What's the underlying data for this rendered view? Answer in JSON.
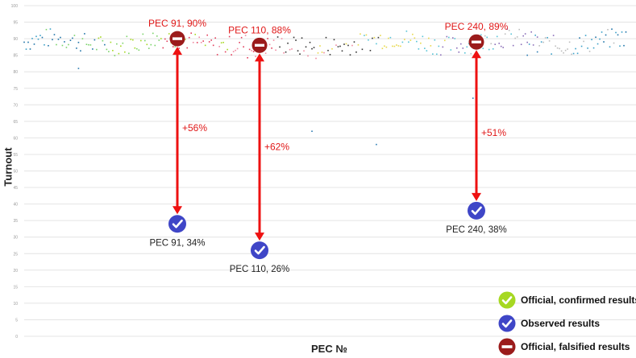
{
  "chart_data": {
    "type": "scatter",
    "xlabel": "PEC №",
    "ylabel": "Turnout",
    "ylim": [
      0,
      100
    ],
    "yticks": [
      0,
      5,
      10,
      15,
      20,
      25,
      30,
      35,
      40,
      45,
      50,
      55,
      60,
      65,
      70,
      75,
      80,
      85,
      90,
      95,
      100
    ],
    "grid": true,
    "legend_position": "bottom-right",
    "legend": [
      {
        "label": "Official, confirmed results",
        "icon": "check-icon",
        "color": "#a6d822"
      },
      {
        "label": "Observed results",
        "icon": "check-icon",
        "color": "#3f46c7"
      },
      {
        "label": "Official, falsified results",
        "icon": "no-entry-icon",
        "color": "#9b1b1b"
      }
    ],
    "highlights": [
      {
        "pec": 91,
        "official": 90,
        "observed": 34,
        "official_label": "PEC 91, 90%",
        "observed_label": "PEC 91, 34%",
        "delta_label": "+56%"
      },
      {
        "pec": 110,
        "official": 88,
        "observed": 26,
        "official_label": "PEC 110, 88%",
        "observed_label": "PEC 110, 26%",
        "delta_label": "+62%"
      },
      {
        "pec": 240,
        "official": 89,
        "observed": 38,
        "official_label": "PEC 240, 89%",
        "observed_label": "PEC 240, 38%",
        "delta_label": "+51%"
      }
    ],
    "colors": {
      "falsified": "#9b1b1b",
      "observed": "#3f46c7",
      "arrow": "#ee1111",
      "label_red": "#e01818",
      "grid": "#e4e4e4",
      "scatter_palette": [
        "#3aa0c8",
        "#1e73a8",
        "#7bd36a",
        "#a6d822",
        "#e23c5a",
        "#f08aa0",
        "#333333",
        "#e8d84a",
        "#56c3d6",
        "#8a6db8",
        "#bcbcbc"
      ]
    }
  }
}
